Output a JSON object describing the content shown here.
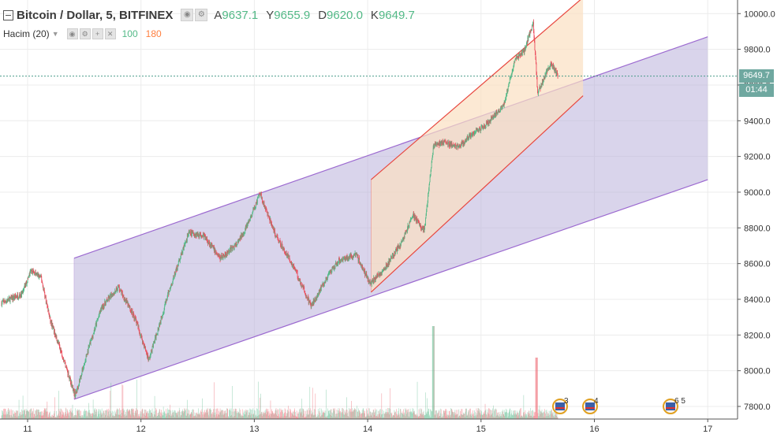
{
  "header": {
    "symbol": "Bitcoin / Dollar, 5, BITFINEX",
    "ohlc": [
      {
        "k": "A",
        "v": "9637.1"
      },
      {
        "k": "Y",
        "v": "9655.9"
      },
      {
        "k": "D",
        "v": "9620.0"
      },
      {
        "k": "K",
        "v": "9649.7"
      }
    ]
  },
  "volume_indicator": {
    "label": "Hacim (20)",
    "v1": "100",
    "v2": "180"
  },
  "price_tag": {
    "price": "9649.7",
    "countdown": "01:44"
  },
  "events": [
    {
      "x": 11.02,
      "count": "3"
    },
    {
      "x": 11.2,
      "count": "4"
    },
    {
      "x": 12.6,
      "count": "6 5"
    }
  ],
  "colors": {
    "up": "#53b987",
    "down": "#eb4d5c",
    "channel_fill": "#b9b0da",
    "channel_line": "#9c6ad0",
    "small_fill": "#fbe0c2",
    "small_line": "#e8473f",
    "price_line": "#4a9c8a",
    "grid": "#ececec"
  },
  "chart_data": {
    "type": "candlestick",
    "x_ticks": [
      "11",
      "12",
      "13",
      "14",
      "15",
      "16",
      "17"
    ],
    "y_ticks": [
      "7800.0",
      "8000.0",
      "8200.0",
      "8400.0",
      "8600.0",
      "8800.0",
      "9000.0",
      "9200.0",
      "9400.0",
      "9600.0",
      "9800.0",
      "10000.0"
    ],
    "ylim": [
      7780,
      10060
    ],
    "xlim": [
      10.77,
      17.25
    ],
    "last_price": 9649.7,
    "price_path": [
      [
        10.77,
        8380
      ],
      [
        10.95,
        8430
      ],
      [
        11.03,
        8560
      ],
      [
        11.12,
        8520
      ],
      [
        11.2,
        8280
      ],
      [
        11.3,
        8100
      ],
      [
        11.42,
        7860
      ],
      [
        11.55,
        8150
      ],
      [
        11.65,
        8350
      ],
      [
        11.8,
        8470
      ],
      [
        11.95,
        8290
      ],
      [
        12.07,
        8060
      ],
      [
        12.25,
        8450
      ],
      [
        12.42,
        8770
      ],
      [
        12.55,
        8760
      ],
      [
        12.7,
        8630
      ],
      [
        12.85,
        8710
      ],
      [
        12.95,
        8830
      ],
      [
        13.05,
        8990
      ],
      [
        13.18,
        8770
      ],
      [
        13.35,
        8580
      ],
      [
        13.5,
        8360
      ],
      [
        13.62,
        8500
      ],
      [
        13.75,
        8620
      ],
      [
        13.9,
        8650
      ],
      [
        14.02,
        8490
      ],
      [
        14.15,
        8570
      ],
      [
        14.3,
        8720
      ],
      [
        14.4,
        8870
      ],
      [
        14.5,
        8780
      ],
      [
        14.58,
        9260
      ],
      [
        14.68,
        9280
      ],
      [
        14.8,
        9250
      ],
      [
        14.95,
        9340
      ],
      [
        15.05,
        9380
      ],
      [
        15.2,
        9490
      ],
      [
        15.3,
        9740
      ],
      [
        15.38,
        9790
      ],
      [
        15.46,
        9950
      ],
      [
        15.5,
        9550
      ],
      [
        15.56,
        9650
      ],
      [
        15.62,
        9720
      ],
      [
        15.68,
        9649.7
      ]
    ],
    "channels": [
      {
        "name": "large",
        "lower": [
          [
            11.41,
            7840
          ],
          [
            17.0,
            9070
          ]
        ],
        "upper": [
          [
            11.41,
            8630
          ],
          [
            17.0,
            9870
          ]
        ]
      },
      {
        "name": "small",
        "lower": [
          [
            14.03,
            8440
          ],
          [
            15.9,
            9540
          ]
        ],
        "upper": [
          [
            14.03,
            9070
          ],
          [
            15.9,
            10090
          ]
        ]
      }
    ]
  }
}
